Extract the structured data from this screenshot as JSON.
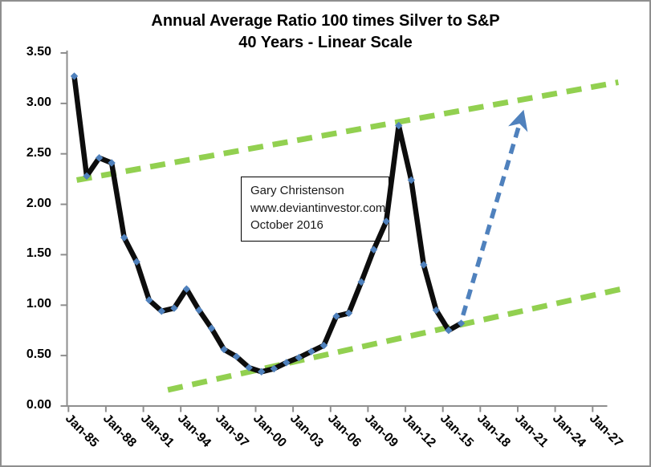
{
  "chart_data": {
    "type": "line",
    "title": "Annual Average Ratio 100 times Silver to S&P",
    "subtitle": "40 Years - Linear Scale",
    "x": [
      1985,
      1986,
      1987,
      1988,
      1989,
      1990,
      1991,
      1992,
      1993,
      1994,
      1995,
      1996,
      1997,
      1998,
      1999,
      2000,
      2001,
      2002,
      2003,
      2004,
      2005,
      2006,
      2007,
      2008,
      2009,
      2010,
      2011,
      2012,
      2013,
      2014,
      2015,
      2016
    ],
    "values": [
      3.27,
      2.28,
      2.46,
      2.41,
      1.67,
      1.43,
      1.05,
      0.94,
      0.97,
      1.16,
      0.95,
      0.77,
      0.56,
      0.49,
      0.38,
      0.34,
      0.37,
      0.43,
      0.48,
      0.54,
      0.6,
      0.89,
      0.92,
      1.23,
      1.55,
      1.83,
      2.78,
      2.24,
      1.4,
      0.95,
      0.75,
      0.82
    ],
    "ylim": [
      0,
      3.5
    ],
    "y_tick_labels": [
      "0.00",
      "0.50",
      "1.00",
      "1.50",
      "2.00",
      "2.50",
      "3.00",
      "3.50"
    ],
    "x_tick_labels": [
      "Jan-85",
      "Jan-88",
      "Jan-91",
      "Jan-94",
      "Jan-97",
      "Jan-00",
      "Jan-03",
      "Jan-06",
      "Jan-09",
      "Jan-12",
      "Jan-15",
      "Jan-18",
      "Jan-21",
      "Jan-24",
      "Jan-27"
    ],
    "x_tick_years": [
      1985,
      1988,
      1991,
      1994,
      1997,
      2000,
      2003,
      2006,
      2009,
      2012,
      2015,
      2018,
      2021,
      2024,
      2027
    ],
    "grid": "off",
    "legend": "none",
    "trend_channel": {
      "upper": {
        "from": {
          "year": 1985.2,
          "value": 2.24
        },
        "to": {
          "year": 2028.6,
          "value": 3.21
        }
      },
      "lower": {
        "from": {
          "year": 1992.5,
          "value": 0.16
        },
        "to": {
          "year": 2029.2,
          "value": 1.17
        }
      }
    },
    "forecast_arrow": {
      "from": {
        "year": 2016.15,
        "value": 0.9
      },
      "to": {
        "year": 2020.85,
        "value": 2.87
      }
    },
    "annotation": {
      "line1": "Gary Christenson",
      "line2": "www.deviantinvestor.com",
      "line3": "October 2016"
    },
    "colors": {
      "series": "#0d0d0d",
      "marker": "#4f81bd",
      "channel": "#92d050",
      "arrow": "#4f81bd",
      "axis": "#8e8e8e",
      "title": "#000000"
    }
  }
}
